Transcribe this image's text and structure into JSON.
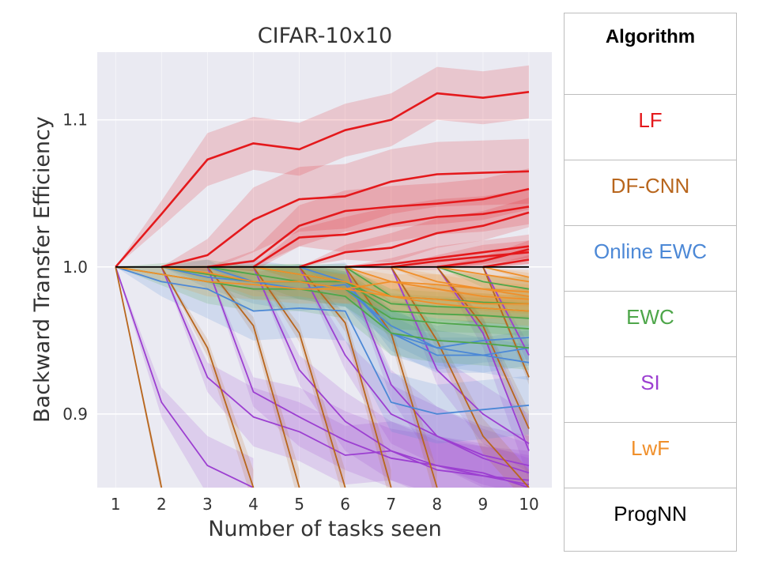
{
  "chart_data": {
    "type": "line",
    "title": "CIFAR-10x10",
    "xlabel": "Number of tasks seen",
    "ylabel": "Backward Transfer Efficiency",
    "x_ticks": [
      "1",
      "2",
      "3",
      "4",
      "5",
      "6",
      "7",
      "8",
      "9",
      "10"
    ],
    "y_ticks": [
      "0.9",
      "1.0",
      "1.1"
    ],
    "xlim": [
      0.6,
      10.5
    ],
    "ylim": [
      0.85,
      1.146
    ],
    "grid": true,
    "background": "#eaeaf2",
    "legend_title": "Algorithm",
    "legend": [
      {
        "name": "LF",
        "color": "#e4191c"
      },
      {
        "name": "DF-CNN",
        "color": "#b8661d"
      },
      {
        "name": "Online EWC",
        "color": "#4c88d6"
      },
      {
        "name": "EWC",
        "color": "#4ea64a"
      },
      {
        "name": "SI",
        "color": "#9c3fd1"
      },
      {
        "name": "LwF",
        "color": "#f08f2a"
      },
      {
        "name": "ProgNN",
        "color": "#000000"
      }
    ],
    "series": [
      {
        "group": "LF",
        "start": 1,
        "values": [
          1.0,
          1.036,
          1.073,
          1.084,
          1.08,
          1.093,
          1.1,
          1.118,
          1.115,
          1.119
        ],
        "band": 0.018
      },
      {
        "group": "LF",
        "start": 2,
        "values": [
          1.0,
          1.008,
          1.032,
          1.046,
          1.048,
          1.058,
          1.063,
          1.064,
          1.065
        ],
        "band": 0.022
      },
      {
        "group": "LF",
        "start": 3,
        "values": [
          1.0,
          1.004,
          1.028,
          1.038,
          1.041,
          1.043,
          1.046,
          1.053
        ],
        "band": 0.014
      },
      {
        "group": "LF",
        "start": 4,
        "values": [
          1.0,
          1.02,
          1.022,
          1.029,
          1.034,
          1.036,
          1.041
        ],
        "band": 0.012
      },
      {
        "group": "LF",
        "start": 5,
        "values": [
          1.0,
          1.01,
          1.013,
          1.023,
          1.028,
          1.037
        ],
        "band": 0.01
      },
      {
        "group": "LF",
        "start": 6,
        "values": [
          1.0,
          1.002,
          1.006,
          1.01,
          1.014
        ],
        "band": 0.008
      },
      {
        "group": "LF",
        "start": 7,
        "values": [
          1.0,
          1.004,
          1.007,
          1.01
        ],
        "band": 0.008
      },
      {
        "group": "LF",
        "start": 8,
        "values": [
          1.0,
          1.004,
          1.012
        ],
        "band": 0.006
      },
      {
        "group": "LF",
        "start": 9,
        "values": [
          1.0,
          1.005
        ],
        "band": 0.006
      },
      {
        "group": "ProgNN",
        "start": 1,
        "values": [
          1.0,
          1.0,
          1.0,
          1.0,
          1.0,
          1.0,
          1.0,
          1.0,
          1.0,
          1.0
        ],
        "band": 0
      },
      {
        "group": "DF-CNN",
        "start": 1,
        "values": [
          1.0,
          0.85
        ],
        "band": 0.01
      },
      {
        "group": "DF-CNN",
        "start": 2,
        "values": [
          1.0,
          0.945,
          0.85
        ],
        "band": 0.012
      },
      {
        "group": "DF-CNN",
        "start": 3,
        "values": [
          1.0,
          0.96,
          0.85
        ],
        "band": 0.012
      },
      {
        "group": "DF-CNN",
        "start": 4,
        "values": [
          1.0,
          0.955,
          0.85
        ],
        "band": 0.012
      },
      {
        "group": "DF-CNN",
        "start": 5,
        "values": [
          1.0,
          0.962,
          0.85
        ],
        "band": 0.012
      },
      {
        "group": "DF-CNN",
        "start": 6,
        "values": [
          1.0,
          0.955,
          0.85
        ],
        "band": 0.012
      },
      {
        "group": "DF-CNN",
        "start": 7,
        "values": [
          1.0,
          0.95,
          0.885,
          0.85
        ],
        "band": 0.012
      },
      {
        "group": "DF-CNN",
        "start": 8,
        "values": [
          1.0,
          0.96,
          0.89
        ],
        "band": 0.012
      },
      {
        "group": "DF-CNN",
        "start": 9,
        "values": [
          1.0,
          0.925
        ],
        "band": 0.01
      },
      {
        "group": "Online EWC",
        "start": 1,
        "values": [
          1.0,
          0.99,
          0.985,
          0.97,
          0.972,
          0.97,
          0.908,
          0.9,
          0.903,
          0.906
        ],
        "band": 0.02
      },
      {
        "group": "Online EWC",
        "start": 2,
        "values": [
          1.0,
          0.993,
          0.99,
          0.985,
          0.988,
          0.955,
          0.945,
          0.95,
          0.952
        ],
        "band": 0.015
      },
      {
        "group": "Online EWC",
        "start": 3,
        "values": [
          1.0,
          0.99,
          0.99,
          0.985,
          0.96,
          0.945,
          0.94,
          0.945
        ],
        "band": 0.012
      },
      {
        "group": "Online EWC",
        "start": 5,
        "values": [
          1.0,
          0.99,
          0.955,
          0.94,
          0.94,
          0.935
        ],
        "band": 0.012
      },
      {
        "group": "EWC",
        "start": 1,
        "values": [
          1.0,
          0.995,
          0.99,
          0.985,
          0.985,
          0.98,
          0.955,
          0.95,
          0.948,
          0.945
        ],
        "band": 0.015
      },
      {
        "group": "EWC",
        "start": 2,
        "values": [
          1.0,
          0.995,
          0.99,
          0.99,
          0.985,
          0.965,
          0.962,
          0.96,
          0.958
        ],
        "band": 0.012
      },
      {
        "group": "EWC",
        "start": 3,
        "values": [
          1.0,
          0.995,
          0.99,
          0.99,
          0.97,
          0.968,
          0.967,
          0.965
        ],
        "band": 0.012
      },
      {
        "group": "EWC",
        "start": 4,
        "values": [
          1.0,
          0.995,
          0.99,
          0.975,
          0.973,
          0.972,
          0.97
        ],
        "band": 0.01
      },
      {
        "group": "EWC",
        "start": 6,
        "values": [
          1.0,
          0.98,
          0.978,
          0.976,
          0.975
        ],
        "band": 0.01
      },
      {
        "group": "EWC",
        "start": 8,
        "values": [
          1.0,
          0.99,
          0.985
        ],
        "band": 0.008
      },
      {
        "group": "SI",
        "start": 1,
        "values": [
          1.0,
          0.908,
          0.865,
          0.85
        ],
        "band": 0.02
      },
      {
        "group": "SI",
        "start": 2,
        "values": [
          1.0,
          0.925,
          0.898,
          0.888,
          0.872,
          0.875,
          0.862,
          0.858,
          0.852
        ],
        "band": 0.02
      },
      {
        "group": "SI",
        "start": 3,
        "values": [
          1.0,
          0.915,
          0.898,
          0.882,
          0.87,
          0.865,
          0.858,
          0.855
        ],
        "band": 0.02
      },
      {
        "group": "SI",
        "start": 4,
        "values": [
          1.0,
          0.93,
          0.895,
          0.875,
          0.865,
          0.86,
          0.85
        ],
        "band": 0.02
      },
      {
        "group": "SI",
        "start": 5,
        "values": [
          1.0,
          0.94,
          0.9,
          0.885,
          0.87,
          0.86
        ],
        "band": 0.02
      },
      {
        "group": "SI",
        "start": 6,
        "values": [
          1.0,
          0.92,
          0.885,
          0.872,
          0.865
        ],
        "band": 0.02
      },
      {
        "group": "SI",
        "start": 7,
        "values": [
          1.0,
          0.93,
          0.9,
          0.88
        ],
        "band": 0.02
      },
      {
        "group": "SI",
        "start": 8,
        "values": [
          1.0,
          0.955,
          0.875
        ],
        "band": 0.02
      },
      {
        "group": "SI",
        "start": 9,
        "values": [
          1.0,
          0.94
        ],
        "band": 0.015
      },
      {
        "group": "LwF",
        "start": 1,
        "values": [
          1.0,
          0.995,
          0.99,
          0.988,
          0.985,
          0.985,
          0.99,
          0.988,
          0.985,
          0.983
        ],
        "band": 0.01
      },
      {
        "group": "LwF",
        "start": 2,
        "values": [
          1.0,
          0.996,
          0.99,
          0.99,
          0.985,
          0.98,
          0.978,
          0.975,
          0.975
        ],
        "band": 0.01
      },
      {
        "group": "LwF",
        "start": 4,
        "values": [
          1.0,
          0.995,
          0.99,
          0.98,
          0.975,
          0.972,
          0.97
        ],
        "band": 0.01
      },
      {
        "group": "LwF",
        "start": 6,
        "values": [
          1.0,
          0.99,
          0.985,
          0.98,
          0.978
        ],
        "band": 0.01
      },
      {
        "group": "LwF",
        "start": 7,
        "values": [
          1.0,
          0.99,
          0.985,
          0.98
        ],
        "band": 0.01
      },
      {
        "group": "LwF",
        "start": 8,
        "values": [
          1.0,
          0.995,
          0.99
        ],
        "band": 0.008
      },
      {
        "group": "LwF",
        "start": 9,
        "values": [
          1.0,
          0.993
        ],
        "band": 0.006
      }
    ]
  }
}
